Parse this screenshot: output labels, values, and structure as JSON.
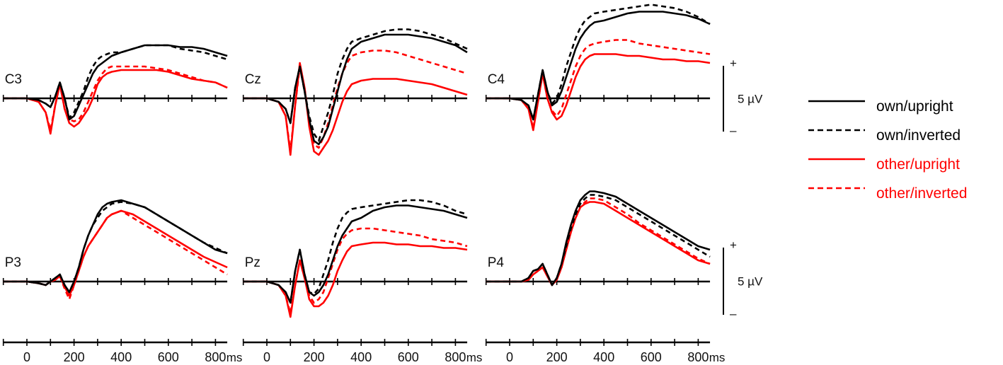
{
  "chart_data": {
    "type": "line",
    "x_unit": "ms",
    "x_tick_labels": [
      "0",
      "200",
      "400",
      "600",
      "800"
    ],
    "xlim": [
      -100,
      850
    ],
    "legend": {
      "placement": "right",
      "entries": [
        {
          "label": "own/upright",
          "color": "#000000",
          "dash": "solid"
        },
        {
          "label": "own/inverted",
          "color": "#000000",
          "dash": "dashed"
        },
        {
          "label": "other/upright",
          "color": "#ff0000",
          "dash": "solid"
        },
        {
          "label": "other/inverted",
          "color": "#ff0000",
          "dash": "dashed"
        }
      ]
    },
    "scale_bar": {
      "label": "5 µV",
      "plus": "+",
      "minus": "–"
    },
    "x": [
      -100,
      -50,
      0,
      50,
      80,
      100,
      120,
      140,
      160,
      180,
      200,
      220,
      240,
      260,
      280,
      300,
      320,
      340,
      360,
      400,
      450,
      500,
      550,
      600,
      650,
      700,
      750,
      800,
      850
    ],
    "panels": [
      {
        "label": "C3",
        "series": [
          {
            "name": "own/upright",
            "values": [
              0,
              0,
              0,
              -0.5,
              -1.5,
              -2.5,
              0.5,
              4.5,
              0,
              -6,
              -5,
              -2,
              1,
              4,
              7,
              9,
              10,
              11,
              12,
              13,
              14,
              15,
              15,
              15,
              14.5,
              14.5,
              14,
              13,
              12
            ]
          },
          {
            "name": "own/inverted",
            "values": [
              0,
              0,
              0,
              -0.5,
              -1.5,
              -2.5,
              0.5,
              4.5,
              0,
              -5.5,
              -4,
              -1,
              2,
              6,
              9,
              11,
              12,
              12.5,
              13,
              13,
              14,
              15,
              15,
              15,
              14,
              13.5,
              13,
              12,
              11
            ]
          },
          {
            "name": "other/upright",
            "values": [
              0,
              0,
              0,
              -1,
              -4,
              -10,
              -2,
              4,
              -3,
              -7,
              -8,
              -7,
              -5,
              -3,
              0,
              4,
              6,
              7,
              7.5,
              8,
              8,
              8,
              8,
              7.5,
              6.5,
              5.5,
              5,
              4.5,
              3
            ]
          },
          {
            "name": "other/inverted",
            "values": [
              0,
              0,
              0,
              -1,
              -4,
              -9,
              -2,
              4,
              -3,
              -6,
              -6.5,
              -6,
              -4,
              -1,
              2,
              5,
              7,
              8.5,
              9,
              9,
              9,
              9,
              8.5,
              8,
              7,
              6,
              5,
              4.5,
              3
            ]
          }
        ]
      },
      {
        "label": "Cz",
        "series": [
          {
            "name": "own/upright",
            "values": [
              0,
              0,
              0,
              -1,
              -3,
              -7,
              3,
              9,
              2,
              -6,
              -12,
              -13,
              -11,
              -8,
              -3,
              2,
              7,
              11,
              14,
              16,
              17,
              18,
              18,
              18,
              17.5,
              17,
              16,
              15,
              13
            ]
          },
          {
            "name": "own/inverted",
            "values": [
              0,
              0,
              0,
              -1,
              -3,
              -7,
              3,
              9,
              2,
              -5,
              -10,
              -12,
              -8,
              -4,
              1,
              7,
              11,
              14,
              16,
              17,
              18,
              19,
              19.5,
              19.5,
              19,
              18,
              17,
              15.5,
              14
            ]
          },
          {
            "name": "other/upright",
            "values": [
              0,
              0,
              0,
              -1,
              -5,
              -16,
              -2,
              10,
              3,
              -8,
              -15,
              -16,
              -14,
              -12,
              -9,
              -5,
              -1,
              2,
              4,
              5,
              5.5,
              5.5,
              5.5,
              5,
              4.5,
              4,
              3,
              2,
              1
            ]
          },
          {
            "name": "other/inverted",
            "values": [
              0,
              0,
              0,
              -1,
              -5,
              -15,
              -2,
              9,
              3,
              -7,
              -13,
              -14,
              -11,
              -7,
              -2,
              3,
              7,
              10,
              12,
              13,
              13.5,
              13.5,
              13,
              12,
              11,
              10,
              9,
              8,
              7
            ]
          }
        ]
      },
      {
        "label": "C4",
        "series": [
          {
            "name": "own/upright",
            "values": [
              0,
              0,
              0,
              -0.5,
              -2,
              -6,
              1,
              8,
              2,
              -2,
              -1,
              2,
              6,
              10,
              14,
              17,
              19,
              20.5,
              21.5,
              22,
              23,
              24,
              24.5,
              24.5,
              24.5,
              24,
              23.5,
              22.5,
              21
            ]
          },
          {
            "name": "own/inverted",
            "values": [
              0,
              0,
              0,
              -0.5,
              -2,
              -6,
              1,
              8,
              2,
              -1.5,
              0,
              4,
              9,
              13,
              17,
              20,
              22,
              23,
              24,
              24.5,
              25,
              25.5,
              26,
              26.5,
              26,
              25.5,
              24.5,
              23,
              21
            ]
          },
          {
            "name": "other/upright",
            "values": [
              0,
              0,
              0,
              -0.5,
              -3,
              -9,
              -1,
              7,
              0,
              -4,
              -6,
              -5,
              -2,
              2,
              6,
              9,
              11,
              12,
              12.5,
              12.5,
              12.5,
              12,
              12,
              11.5,
              11,
              11,
              10.5,
              10.5,
              10
            ]
          },
          {
            "name": "other/inverted",
            "values": [
              0,
              0,
              0,
              -0.5,
              -3,
              -8.5,
              -1,
              7,
              0,
              -3.5,
              -5,
              -3,
              1,
              5,
              9,
              12,
              14,
              15,
              15.5,
              16,
              16.5,
              16.5,
              15.5,
              15,
              14.5,
              14,
              13.5,
              13,
              12.5
            ]
          }
        ]
      },
      {
        "label": "P3",
        "series": [
          {
            "name": "own/upright",
            "values": [
              0,
              0,
              0,
              -0.5,
              -1,
              0,
              1,
              2,
              -1,
              -3,
              0,
              4,
              9,
              13,
              16,
              19,
              21,
              22,
              22.5,
              23,
              22,
              21,
              19,
              17,
              15,
              13,
              11,
              9,
              8
            ]
          },
          {
            "name": "own/inverted",
            "values": [
              0,
              0,
              0,
              -0.5,
              -1,
              0,
              1,
              2,
              -1,
              -3,
              0,
              4,
              9,
              13,
              16,
              18,
              20,
              21,
              22,
              22.5,
              22,
              21,
              19,
              17,
              15,
              13,
              11,
              9.5,
              8
            ]
          },
          {
            "name": "other/upright",
            "values": [
              0,
              0,
              0,
              -0.5,
              -1,
              0,
              0.5,
              1.5,
              -1.5,
              -4,
              -1,
              3,
              7,
              10,
              12,
              14,
              16,
              18,
              19,
              20,
              19,
              17,
              15,
              13,
              11,
              9,
              7,
              5.5,
              4
            ]
          },
          {
            "name": "other/inverted",
            "values": [
              0,
              0,
              0,
              -0.5,
              -1,
              0,
              0.5,
              1.5,
              -2,
              -5,
              -1,
              3,
              7,
              10,
              12,
              14,
              16,
              18,
              19,
              20,
              18,
              16,
              14,
              12,
              10,
              8,
              6,
              4,
              2
            ]
          }
        ]
      },
      {
        "label": "Pz",
        "series": [
          {
            "name": "own/upright",
            "values": [
              0,
              0,
              0,
              -1,
              -3,
              -6,
              3,
              9,
              2,
              -3,
              -4,
              -3,
              -1,
              2,
              6,
              10,
              13,
              15,
              17,
              18,
              20,
              21,
              21.5,
              21.5,
              21,
              20.5,
              20,
              19,
              18
            ]
          },
          {
            "name": "own/inverted",
            "values": [
              0,
              0,
              0,
              -1,
              -3,
              -6,
              3,
              9,
              2,
              -3,
              -3.5,
              -2,
              2,
              6,
              11,
              15,
              18,
              19.5,
              20.5,
              21,
              21.5,
              22,
              22.5,
              23,
              23,
              22.5,
              21.5,
              20,
              19
            ]
          },
          {
            "name": "other/upright",
            "values": [
              0,
              0,
              0,
              -1,
              -4,
              -10,
              -1,
              6,
              1,
              -5,
              -7,
              -7,
              -6,
              -4,
              -1,
              3,
              6,
              8.5,
              10,
              10.5,
              11,
              11,
              10.5,
              10.5,
              10,
              10,
              9.5,
              9.5,
              9
            ]
          },
          {
            "name": "other/inverted",
            "values": [
              0,
              0,
              0,
              -1,
              -4,
              -9,
              -1,
              6,
              1,
              -4,
              -6,
              -5,
              -3,
              1,
              5,
              9,
              12,
              13.5,
              14.5,
              15,
              15,
              14.5,
              14,
              13.5,
              13,
              12,
              11.5,
              11,
              10
            ]
          }
        ]
      },
      {
        "label": "P4",
        "series": [
          {
            "name": "own/upright",
            "values": [
              0,
              0,
              0,
              0,
              1,
              3,
              3.5,
              5,
              2,
              -1,
              1,
              5,
              11,
              16,
              20,
              23,
              24.5,
              25.5,
              25.5,
              25,
              24,
              22,
              20,
              18,
              16,
              14,
              12,
              10,
              9
            ]
          },
          {
            "name": "own/inverted",
            "values": [
              0,
              0,
              0,
              0,
              1,
              3,
              3.5,
              5,
              2,
              -1,
              1,
              5,
              10,
              15,
              19,
              22,
              23.5,
              24.5,
              24.5,
              24,
              23,
              21,
              19,
              17,
              15,
              13,
              11,
              9,
              7
            ]
          },
          {
            "name": "other/upright",
            "values": [
              0,
              0,
              0,
              0,
              0.5,
              2,
              3,
              4,
              1.5,
              -1,
              0.5,
              4,
              9,
              14,
              18,
              21,
              22,
              22.5,
              22.5,
              22,
              20,
              18,
              16,
              14,
              12,
              10,
              8,
              6,
              5
            ]
          },
          {
            "name": "other/inverted",
            "values": [
              0,
              0,
              0,
              0,
              0.5,
              2,
              3,
              4,
              1.5,
              -1,
              0.5,
              4,
              9,
              14,
              18,
              21,
              22.5,
              23.5,
              23.5,
              23,
              21,
              19,
              16.5,
              14.5,
              12.5,
              10.5,
              8.5,
              6.5,
              5
            ]
          }
        ]
      }
    ]
  }
}
